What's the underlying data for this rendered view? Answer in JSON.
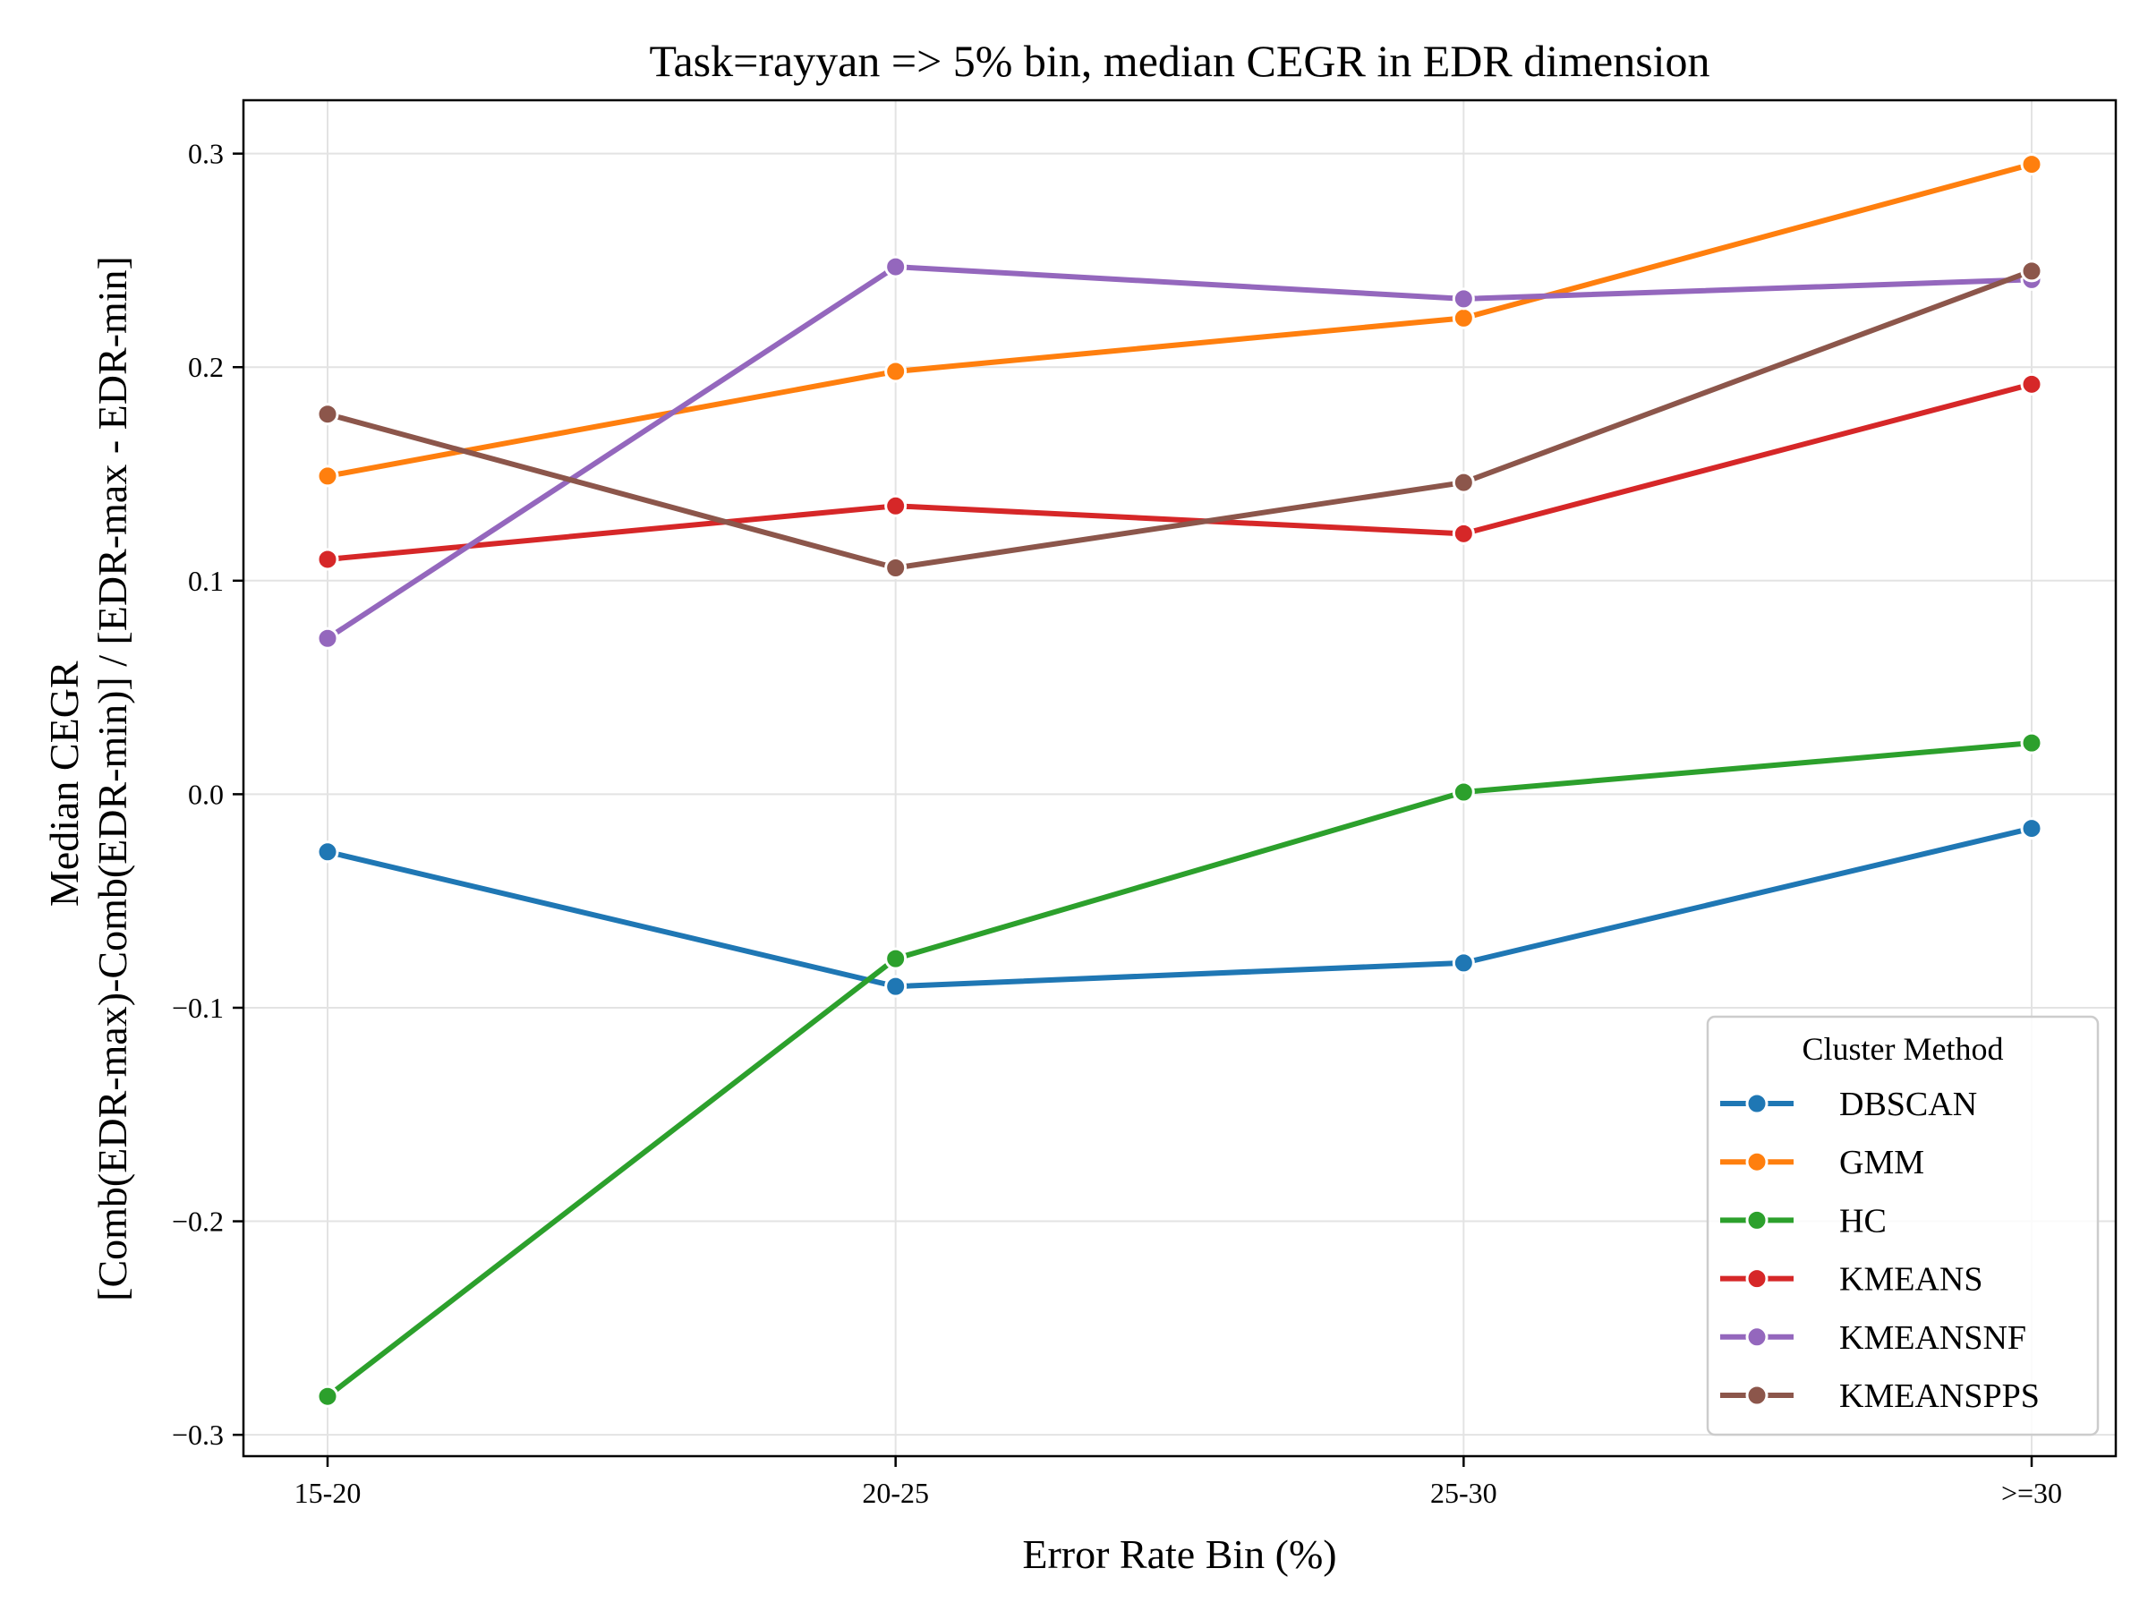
{
  "chart_data": {
    "type": "line",
    "title": "Task=rayyan => 5% bin, median CEGR in EDR dimension",
    "xlabel": "Error Rate Bin (%)",
    "ylabel": [
      "Median CEGR",
      "[Comb(EDR-max)-Comb(EDR-min)] / [EDR-max - EDR-min]"
    ],
    "categories": [
      "15-20",
      "20-25",
      "25-30",
      ">=30"
    ],
    "ylim": [
      -0.31,
      0.325
    ],
    "yticks": [
      -0.3,
      -0.2,
      -0.1,
      0.0,
      0.1,
      0.2,
      0.3
    ],
    "ytick_labels": [
      "−0.3",
      "−0.2",
      "−0.1",
      "0.0",
      "0.1",
      "0.2",
      "0.3"
    ],
    "grid": true,
    "legend": {
      "title": "Cluster Method",
      "placement": "lower-right"
    },
    "series": [
      {
        "name": "DBSCAN",
        "color": "#1f77b4",
        "values": [
          -0.027,
          -0.09,
          -0.079,
          -0.016
        ]
      },
      {
        "name": "GMM",
        "color": "#ff7f0e",
        "values": [
          0.149,
          0.198,
          0.223,
          0.295
        ]
      },
      {
        "name": "HC",
        "color": "#2ca02c",
        "values": [
          -0.282,
          -0.077,
          0.001,
          0.024
        ]
      },
      {
        "name": "KMEANS",
        "color": "#d62728",
        "values": [
          0.11,
          0.135,
          0.122,
          0.192
        ]
      },
      {
        "name": "KMEANSNF",
        "color": "#9467bd",
        "values": [
          0.073,
          0.247,
          0.232,
          0.241
        ]
      },
      {
        "name": "KMEANSPPS",
        "color": "#8c564b",
        "values": [
          0.178,
          0.106,
          0.146,
          0.245
        ]
      }
    ]
  }
}
